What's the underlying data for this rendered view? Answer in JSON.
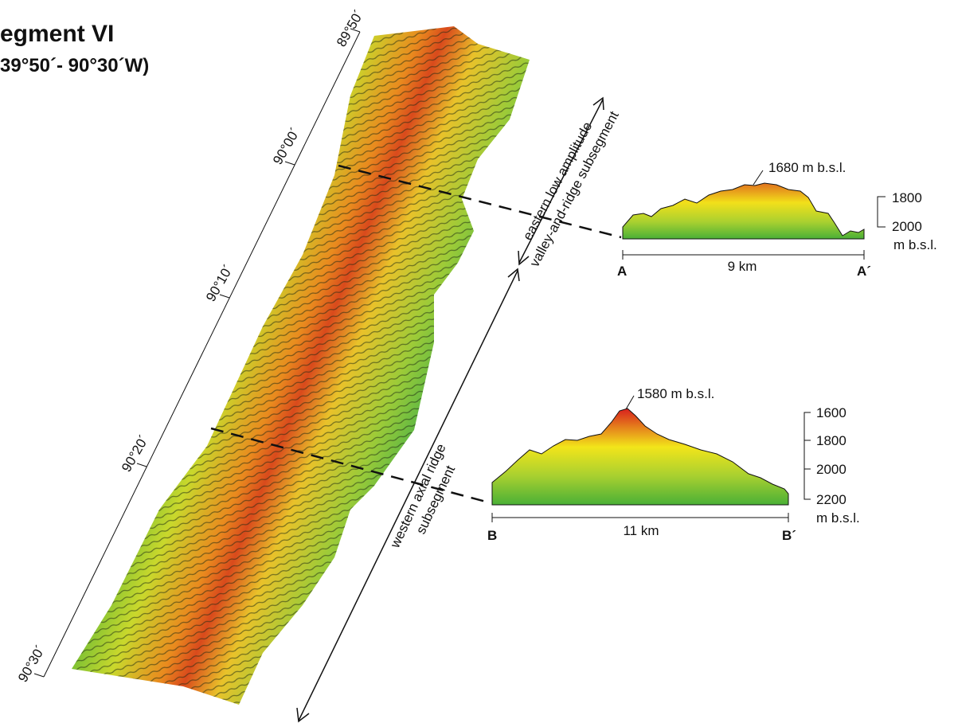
{
  "header": {
    "title": "egment VI",
    "subtitle": "39°50´- 90°30´W)"
  },
  "longitude_scale": [
    "89°50´",
    "90°00´",
    "90°10´",
    "90°20´",
    "90°30´"
  ],
  "arrows": [
    {
      "lines": [
        "eastern low amplitude",
        "valley-and-ridge subsegment"
      ]
    },
    {
      "lines": [
        "western axial ridge",
        "subsegment"
      ]
    }
  ],
  "profiles": [
    {
      "peak": "1680 m b.s.l.",
      "depth_ticks": [
        "1800",
        "2000"
      ],
      "depth_unit": "m b.s.l.",
      "start": "A",
      "length": "9 km",
      "end": "A´"
    },
    {
      "peak": "1580 m b.s.l.",
      "depth_ticks": [
        "1600",
        "1800",
        "2000",
        "2200"
      ],
      "depth_unit": "m b.s.l.",
      "start": "B",
      "length": "11 km",
      "end": "B´"
    }
  ]
}
